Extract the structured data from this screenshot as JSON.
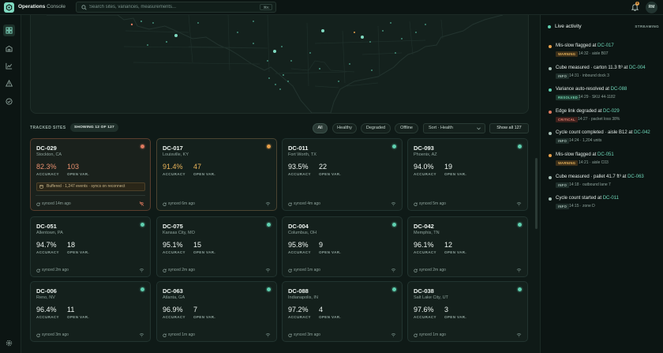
{
  "app": {
    "title_bold": "Operations",
    "title_rest": " Console"
  },
  "search": {
    "placeholder": "Search sites, variances, measurements...",
    "shortcut": "⌘K"
  },
  "notifications": {
    "count": "8",
    "icon": "bell-icon"
  },
  "user": {
    "initials": "RM"
  },
  "nav": [
    {
      "name": "dashboard-icon",
      "active": true
    },
    {
      "name": "warehouse-icon",
      "active": false
    },
    {
      "name": "chart-icon",
      "active": false
    },
    {
      "name": "alert-icon",
      "active": false
    },
    {
      "name": "check-circle-icon",
      "active": false
    },
    {
      "name": "settings-icon",
      "active": false
    }
  ],
  "sites": {
    "section_title": "TRACKED SITES",
    "count_label": "SHOWING 12 OF 127",
    "filters": [
      "All",
      "Healthy",
      "Degraded",
      "Offline"
    ],
    "active_filter": "All",
    "sort_label": "Sort · Health",
    "show_all": "Show all 127",
    "acc_label": "ACCURACY",
    "open_label": "OPEN VAR.",
    "cards": [
      {
        "id": "DC-029",
        "loc": "Stockton, CA",
        "acc": "82.3%",
        "open": "103",
        "sync": "synced 14m ago",
        "status": "critical",
        "buffer": "Buffered · 1,247 events · syncs on reconnect"
      },
      {
        "id": "DC-017",
        "loc": "Louisville, KY",
        "acc": "91.4%",
        "open": "47",
        "sync": "synced 6m ago",
        "status": "warning"
      },
      {
        "id": "DC-011",
        "loc": "Fort Worth, TX",
        "acc": "93.5%",
        "open": "22",
        "sync": "synced 4m ago",
        "status": "ok"
      },
      {
        "id": "DC-093",
        "loc": "Phoenix, AZ",
        "acc": "94.0%",
        "open": "19",
        "sync": "synced 5m ago",
        "status": "ok"
      },
      {
        "id": "DC-051",
        "loc": "Allentown, PA",
        "acc": "94.7%",
        "open": "18",
        "sync": "synced 2m ago",
        "status": "ok"
      },
      {
        "id": "DC-075",
        "loc": "Kansas City, MO",
        "acc": "95.1%",
        "open": "15",
        "sync": "synced 2m ago",
        "status": "ok"
      },
      {
        "id": "DC-004",
        "loc": "Columbus, OH",
        "acc": "95.8%",
        "open": "9",
        "sync": "synced 1m ago",
        "status": "ok"
      },
      {
        "id": "DC-042",
        "loc": "Memphis, TN",
        "acc": "96.1%",
        "open": "12",
        "sync": "synced 2m ago",
        "status": "ok"
      },
      {
        "id": "DC-006",
        "loc": "Reno, NV",
        "acc": "96.4%",
        "open": "11",
        "sync": "synced 3m ago",
        "status": "ok"
      },
      {
        "id": "DC-063",
        "loc": "Atlanta, GA",
        "acc": "96.9%",
        "open": "7",
        "sync": "synced 1m ago",
        "status": "ok"
      },
      {
        "id": "DC-088",
        "loc": "Indianapolis, IN",
        "acc": "97.2%",
        "open": "4",
        "sync": "synced 3m ago",
        "status": "ok"
      },
      {
        "id": "DC-038",
        "loc": "Salt Lake City, UT",
        "acc": "97.6%",
        "open": "3",
        "sync": "synced 1m ago",
        "status": "ok"
      }
    ]
  },
  "feed": {
    "title": "Live activity",
    "stream_label": "STREAMING",
    "events": [
      {
        "text": "Mis-slow flagged at ",
        "link": "DC-017",
        "badge": "WARNING",
        "kind": "warning",
        "meta": "14:32 · aisle B07"
      },
      {
        "text": "Cube measured · carton 11.3 ft³ at ",
        "link": "DC-004",
        "badge": "INFO",
        "kind": "info",
        "meta": "14:31 · inbound dock 3"
      },
      {
        "text": "Variance auto-resolved at ",
        "link": "DC-088",
        "badge": "RESOLVED",
        "kind": "resolved",
        "meta": "14:29 · SKU 44-1182"
      },
      {
        "text": "Edge link degraded at ",
        "link": "DC-029",
        "badge": "CRITICAL",
        "kind": "critical",
        "meta": "14:27 · packet loss 38%"
      },
      {
        "text": "Cycle count completed · aisle B12 at ",
        "link": "DC-042",
        "badge": "INFO",
        "kind": "info",
        "meta": "14:24 · 1,204 units"
      },
      {
        "text": "Mis-slow flagged at ",
        "link": "DC-051",
        "badge": "WARNING",
        "kind": "warning",
        "meta": "14:21 · aisle C03"
      },
      {
        "text": "Cube measured · pallet 41.7 ft³ at ",
        "link": "DC-063",
        "badge": "INFO",
        "kind": "info",
        "meta": "14:18 · outbound lane 7"
      },
      {
        "text": "Cycle count started at ",
        "link": "DC-011",
        "badge": "INFO",
        "kind": "info",
        "meta": "14:15 · zone D"
      }
    ]
  },
  "colors": {
    "accent": "#5fd0b0",
    "warning": "#e8a04a",
    "critical": "#e07a5f",
    "bg": "#0f1a17"
  }
}
